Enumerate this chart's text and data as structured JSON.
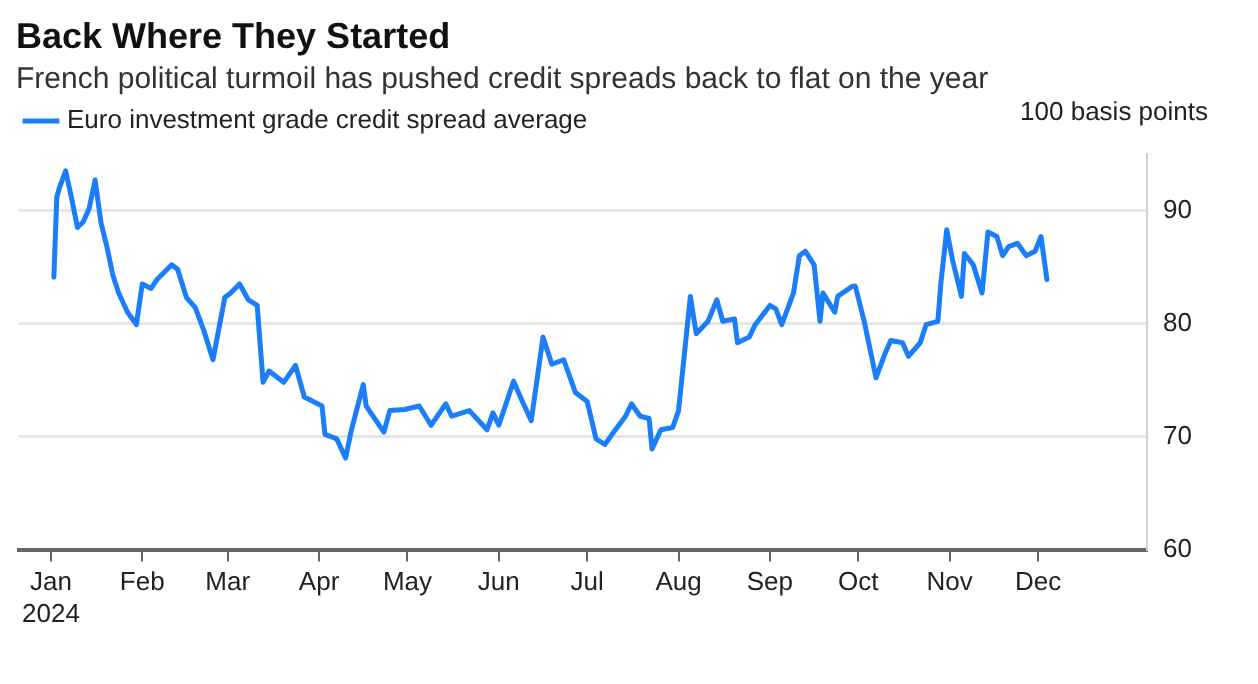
{
  "chart_data": {
    "type": "line",
    "title": "Back Where They Started",
    "subtitle": "French political turmoil has pushed credit spreads back to flat on the year",
    "ylabel": "100 basis points",
    "x": [
      "2024-01-02",
      "2024-01-03",
      "2024-01-04",
      "2024-01-06",
      "2024-01-08",
      "2024-01-10",
      "2024-01-12",
      "2024-01-14",
      "2024-01-16",
      "2024-01-18",
      "2024-01-20",
      "2024-01-22",
      "2024-01-24",
      "2024-01-27",
      "2024-01-30",
      "2024-02-01",
      "2024-02-04",
      "2024-02-06",
      "2024-02-11",
      "2024-02-13",
      "2024-02-16",
      "2024-02-19",
      "2024-02-22",
      "2024-02-25",
      "2024-02-29",
      "2024-03-02",
      "2024-03-05",
      "2024-03-08",
      "2024-03-11",
      "2024-03-13",
      "2024-03-15",
      "2024-03-18",
      "2024-03-20",
      "2024-03-24",
      "2024-03-27",
      "2024-04-02",
      "2024-04-03",
      "2024-04-07",
      "2024-04-10",
      "2024-04-12",
      "2024-04-16",
      "2024-04-17",
      "2024-04-23",
      "2024-04-25",
      "2024-04-30",
      "2024-05-05",
      "2024-05-09",
      "2024-05-14",
      "2024-05-16",
      "2024-05-22",
      "2024-05-28",
      "2024-05-30",
      "2024-06-01",
      "2024-06-06",
      "2024-06-09",
      "2024-06-12",
      "2024-06-16",
      "2024-06-19",
      "2024-06-23",
      "2024-06-27",
      "2024-07-01",
      "2024-07-04",
      "2024-07-07",
      "2024-07-10",
      "2024-07-14",
      "2024-07-16",
      "2024-07-19",
      "2024-07-22",
      "2024-07-23",
      "2024-07-26",
      "2024-07-30",
      "2024-08-01",
      "2024-08-05",
      "2024-08-07",
      "2024-08-11",
      "2024-08-14",
      "2024-08-16",
      "2024-08-20",
      "2024-08-21",
      "2024-08-25",
      "2024-08-27",
      "2024-09-01",
      "2024-09-03",
      "2024-09-05",
      "2024-09-09",
      "2024-09-11",
      "2024-09-13",
      "2024-09-16",
      "2024-09-18",
      "2024-09-19",
      "2024-09-23",
      "2024-09-24",
      "2024-09-29",
      "2024-09-30",
      "2024-10-03",
      "2024-10-07",
      "2024-10-10",
      "2024-10-12",
      "2024-10-16",
      "2024-10-18",
      "2024-10-22",
      "2024-10-24",
      "2024-10-28",
      "2024-10-29",
      "2024-10-31",
      "2024-11-02",
      "2024-11-05",
      "2024-11-06",
      "2024-11-09",
      "2024-11-12",
      "2024-11-14",
      "2024-11-17",
      "2024-11-19",
      "2024-11-21",
      "2024-11-24",
      "2024-11-27",
      "2024-11-30",
      "2024-12-02",
      "2024-12-04"
    ],
    "series": [
      {
        "name": "Euro investment grade credit spread average",
        "color": "#1a7efb",
        "values": [
          84.1,
          91.2,
          92.1,
          93.5,
          91.1,
          88.5,
          89,
          90.2,
          92.7,
          88.9,
          86.8,
          84.3,
          82.7,
          81,
          79.9,
          83.5,
          83.1,
          83.9,
          85.2,
          84.8,
          82.3,
          81.4,
          79.3,
          76.8,
          82.3,
          82.7,
          83.5,
          82.1,
          81.6,
          74.8,
          75.8,
          75.2,
          74.8,
          76.3,
          73.5,
          72.7,
          70.2,
          69.8,
          68.1,
          70.6,
          74.6,
          72.7,
          70.4,
          72.3,
          72.4,
          72.7,
          71,
          72.9,
          71.8,
          72.3,
          70.6,
          72.1,
          71,
          74.9,
          73.1,
          71.4,
          78.8,
          76.4,
          76.8,
          73.9,
          73.1,
          69.8,
          69.3,
          70.4,
          71.8,
          72.9,
          71.8,
          71.6,
          68.9,
          70.6,
          70.8,
          72.3,
          82.4,
          79.1,
          80.2,
          82.1,
          80.2,
          80.4,
          78.3,
          78.8,
          79.9,
          81.6,
          81.3,
          79.9,
          82.7,
          86,
          86.4,
          85.2,
          80.2,
          82.7,
          81,
          82.4,
          83.3,
          83.3,
          80.2,
          75.2,
          77.3,
          78.5,
          78.3,
          77.1,
          78.3,
          79.9,
          80.2,
          83.5,
          88.3,
          85.6,
          82.4,
          86.2,
          85.2,
          82.7,
          88.1,
          87.7,
          86,
          86.8,
          87.1,
          86,
          86.4,
          87.7,
          83.9
        ]
      }
    ],
    "xlim": [
      "2023-12-21",
      "2025-01-07"
    ],
    "xticks": [
      {
        "value": "2024-01-01",
        "label": "Jan\n2024"
      },
      {
        "value": "2024-02-01",
        "label": "Feb"
      },
      {
        "value": "2024-03-01",
        "label": "Mar"
      },
      {
        "value": "2024-04-01",
        "label": "Apr"
      },
      {
        "value": "2024-05-01",
        "label": "May"
      },
      {
        "value": "2024-06-01",
        "label": "Jun"
      },
      {
        "value": "2024-07-01",
        "label": "Jul"
      },
      {
        "value": "2024-08-01",
        "label": "Aug"
      },
      {
        "value": "2024-09-01",
        "label": "Sep"
      },
      {
        "value": "2024-10-01",
        "label": "Oct"
      },
      {
        "value": "2024-11-01",
        "label": "Nov"
      },
      {
        "value": "2024-12-01",
        "label": "Dec"
      }
    ],
    "ylim": [
      60,
      95
    ],
    "yticks": [
      60,
      70,
      80,
      90
    ],
    "grid": "y",
    "legend": "top left",
    "line_style": "solid",
    "marker": "none"
  }
}
